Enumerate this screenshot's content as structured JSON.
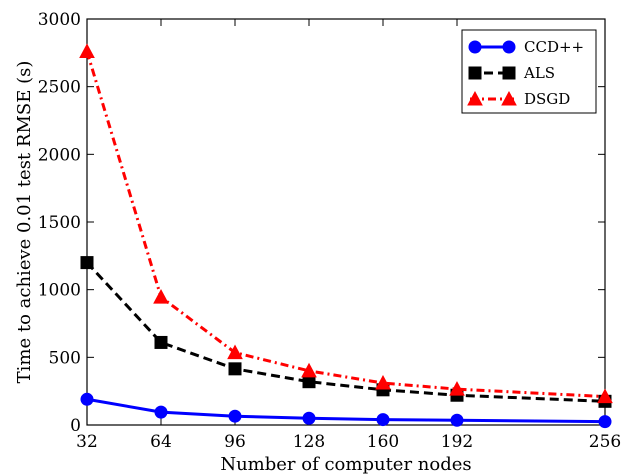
{
  "chart_data": {
    "type": "line",
    "xlabel": "Number of computer nodes",
    "ylabel": "Time to achieve 0.01 test RMSE (s)",
    "xlim": [
      32,
      256
    ],
    "ylim": [
      0,
      3000
    ],
    "xticks": [
      32,
      64,
      96,
      128,
      160,
      192,
      256
    ],
    "yticks": [
      0,
      500,
      1000,
      1500,
      2000,
      2500,
      3000
    ],
    "legend_position": "top-right",
    "grid": false,
    "series": [
      {
        "name": "CCD++",
        "color": "#0000ff",
        "line_style": "solid",
        "marker": "circle",
        "x": [
          32,
          64,
          96,
          128,
          160,
          192,
          256
        ],
        "y": [
          190,
          95,
          65,
          50,
          40,
          35,
          25
        ]
      },
      {
        "name": "ALS",
        "color": "#000000",
        "line_style": "dashed",
        "marker": "square",
        "x": [
          32,
          64,
          96,
          128,
          160,
          192,
          256
        ],
        "y": [
          1200,
          610,
          415,
          320,
          260,
          220,
          175
        ]
      },
      {
        "name": "DSGD",
        "color": "#ff0000",
        "line_style": "dashdot",
        "marker": "triangle",
        "x": [
          32,
          64,
          96,
          128,
          160,
          192,
          256
        ],
        "y": [
          2760,
          945,
          535,
          400,
          310,
          265,
          210
        ]
      }
    ]
  }
}
